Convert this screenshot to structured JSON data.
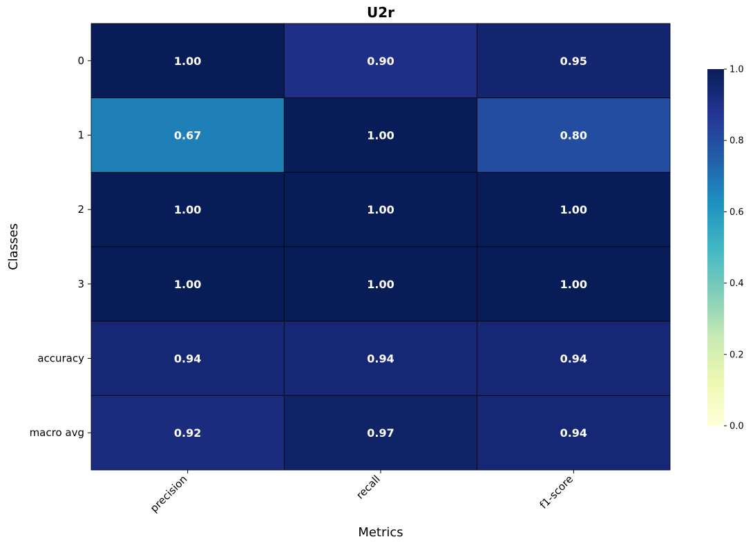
{
  "chart_data": {
    "type": "heatmap",
    "title": "U2r",
    "xlabel": "Metrics",
    "ylabel": "Classes",
    "x_categories": [
      "precision",
      "recall",
      "f1-score"
    ],
    "y_categories": [
      "0",
      "1",
      "2",
      "3",
      "accuracy",
      "macro avg"
    ],
    "values": [
      [
        1.0,
        0.9,
        0.95
      ],
      [
        0.67,
        1.0,
        0.8
      ],
      [
        1.0,
        1.0,
        1.0
      ],
      [
        1.0,
        1.0,
        1.0
      ],
      [
        0.94,
        0.94,
        0.94
      ],
      [
        0.92,
        0.97,
        0.94
      ]
    ],
    "value_labels": [
      [
        "1.00",
        "0.90",
        "0.95"
      ],
      [
        "0.67",
        "1.00",
        "0.80"
      ],
      [
        "1.00",
        "1.00",
        "1.00"
      ],
      [
        "1.00",
        "1.00",
        "1.00"
      ],
      [
        "0.94",
        "0.94",
        "0.94"
      ],
      [
        "0.92",
        "0.97",
        "0.94"
      ]
    ],
    "colormap": "YlGnBu",
    "vmin": 0.0,
    "vmax": 1.0,
    "colorbar_ticks": [
      "0.0",
      "0.2",
      "0.4",
      "0.6",
      "0.8",
      "1.0"
    ],
    "cell_border_color": "#000000",
    "label_color": "#ffffff"
  }
}
